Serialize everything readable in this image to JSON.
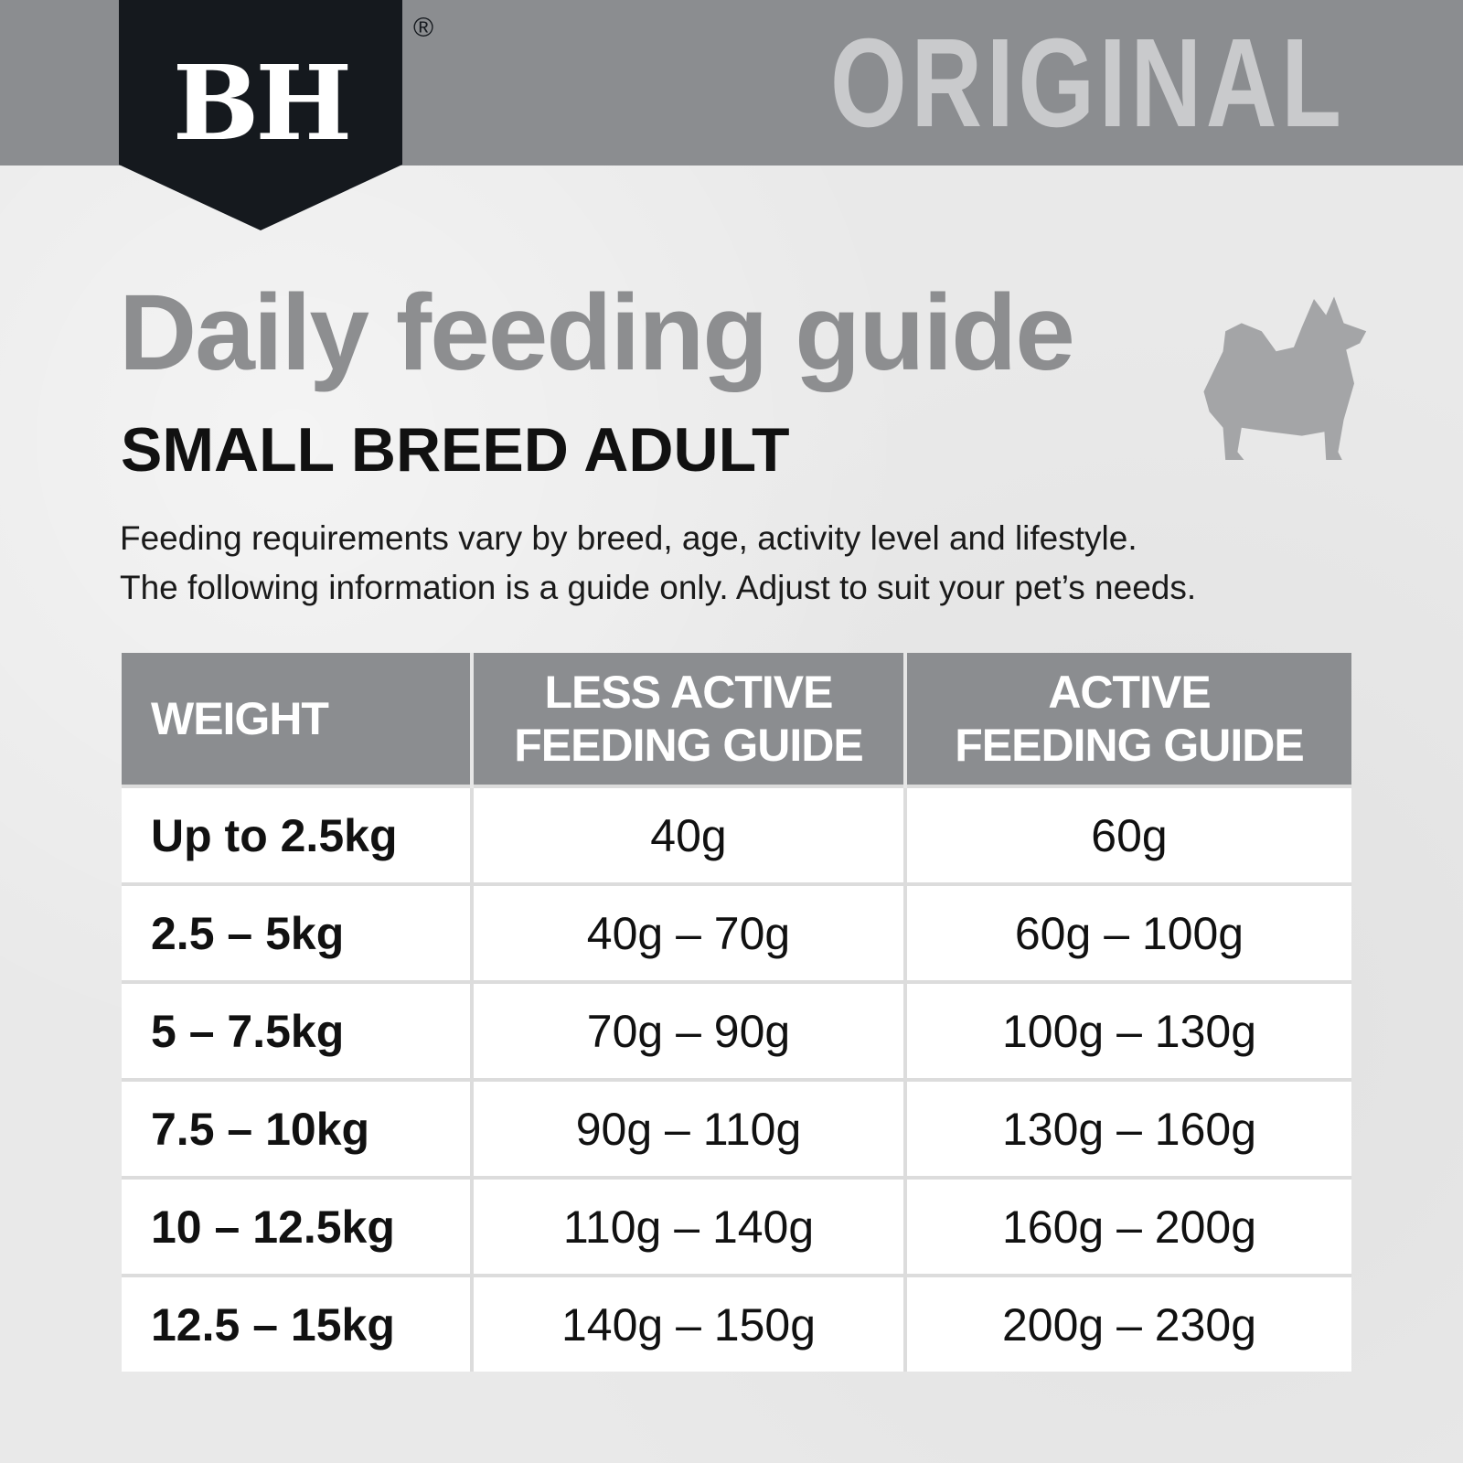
{
  "brand": {
    "logo_text": "BH",
    "registered": "®",
    "variant": "ORIGINAL",
    "colors": {
      "bar": "#8b8d90",
      "shield": "#15191e"
    }
  },
  "heading": {
    "title": "Daily feeding guide",
    "subtitle": "SMALL BREED ADULT",
    "description_line1": "Feeding requirements vary by breed, age, activity level and lifestyle.",
    "description_line2": "The following information is a guide only. Adjust to suit your pet’s needs."
  },
  "illustration": {
    "icon": "dog-silhouette-icon"
  },
  "table": {
    "headers": [
      "WEIGHT",
      "LESS ACTIVE FEEDING GUIDE",
      "ACTIVE FEEDING GUIDE"
    ],
    "header_lines": [
      [
        "WEIGHT"
      ],
      [
        "LESS ACTIVE",
        "FEEDING GUIDE"
      ],
      [
        "ACTIVE",
        "FEEDING GUIDE"
      ]
    ],
    "rows": [
      [
        "Up to 2.5kg",
        "40g",
        "60g"
      ],
      [
        "2.5 – 5kg",
        "40g – 70g",
        "60g – 100g"
      ],
      [
        "5 – 7.5kg",
        "70g – 90g",
        "100g – 130g"
      ],
      [
        "7.5 – 10kg",
        "90g – 110g",
        "130g – 160g"
      ],
      [
        "10 – 12.5kg",
        "110g – 140g",
        "160g – 200g"
      ],
      [
        "12.5 – 15kg",
        "140g – 150g",
        "200g – 230g"
      ]
    ]
  }
}
